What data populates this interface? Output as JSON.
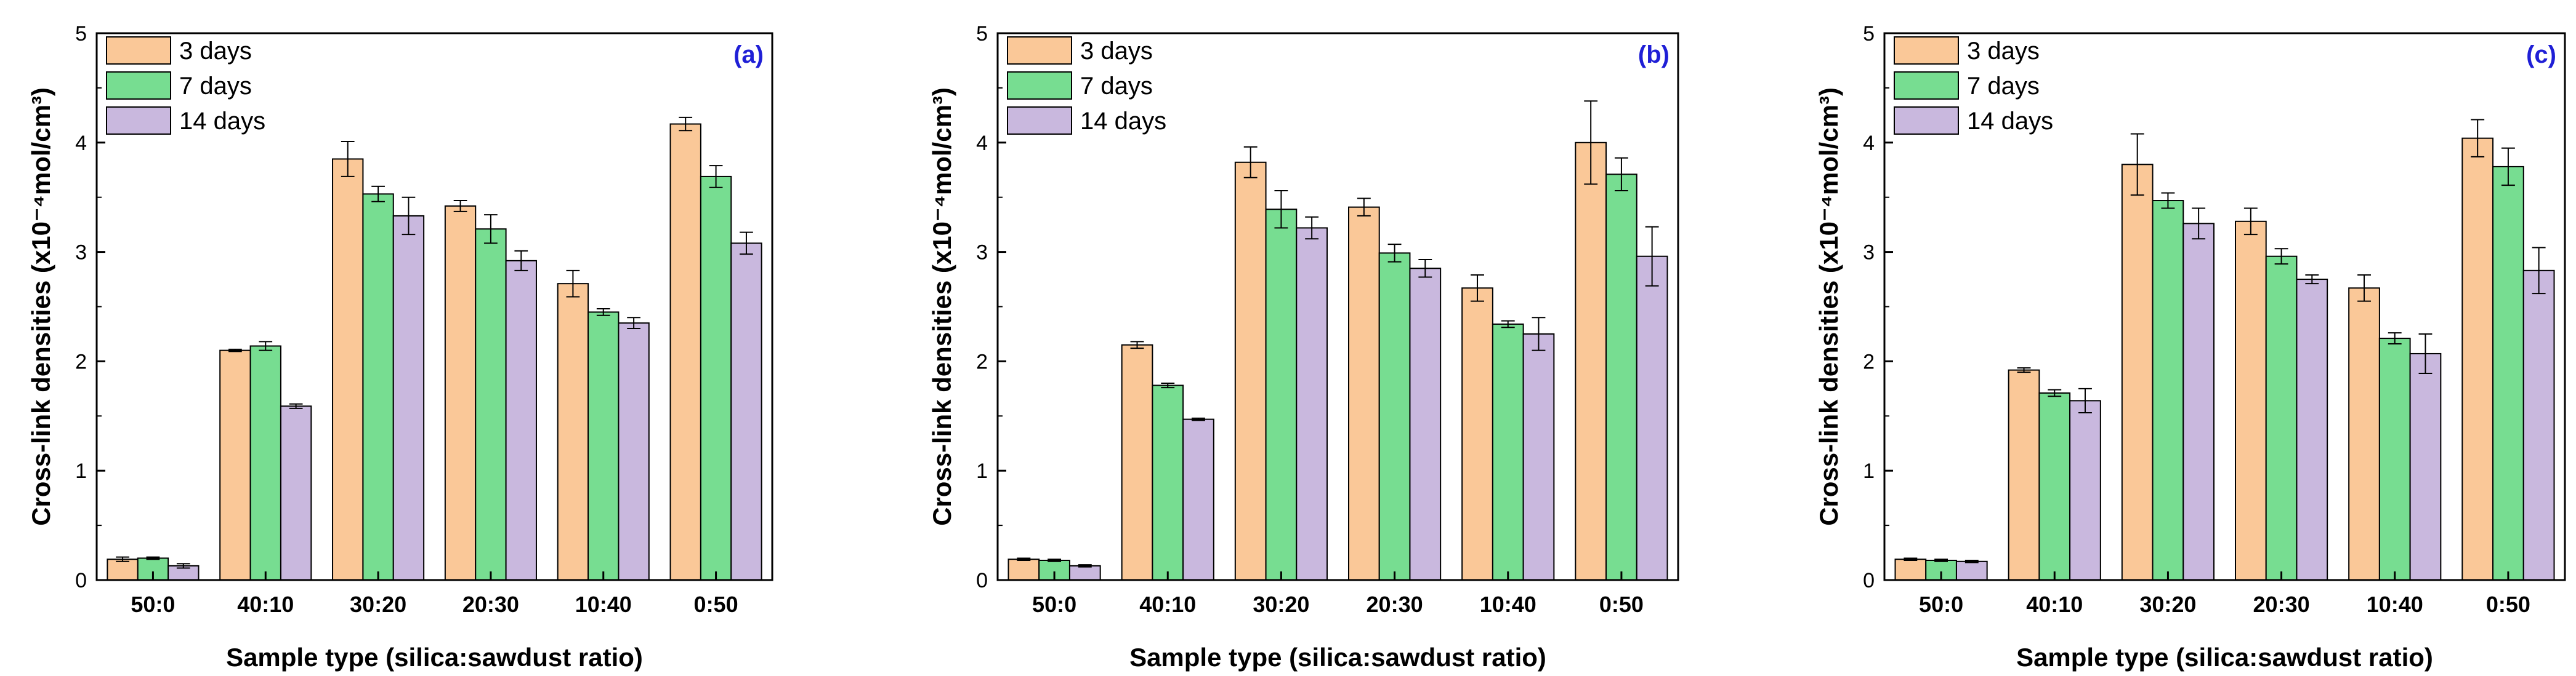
{
  "chart_data": [
    {
      "type": "bar",
      "panel_label": "(a)",
      "categories": [
        "50:0",
        "40:10",
        "30:20",
        "20:30",
        "10:40",
        "0:50"
      ],
      "series": [
        {
          "name": "3 days",
          "color": "#fac898",
          "values": [
            0.19,
            2.1,
            3.85,
            3.42,
            2.71,
            4.17
          ],
          "errors": [
            0.02,
            0.01,
            0.16,
            0.05,
            0.12,
            0.06
          ]
        },
        {
          "name": "7 days",
          "color": "#77dd91",
          "values": [
            0.2,
            2.14,
            3.53,
            3.21,
            2.45,
            3.69
          ],
          "errors": [
            0.01,
            0.04,
            0.07,
            0.13,
            0.03,
            0.1
          ]
        },
        {
          "name": "14 days",
          "color": "#c9b8de",
          "values": [
            0.13,
            1.59,
            3.33,
            2.92,
            2.35,
            3.08
          ],
          "errors": [
            0.02,
            0.02,
            0.17,
            0.09,
            0.05,
            0.1
          ]
        }
      ],
      "ylabel": "Cross-link densities (x10⁻⁴mol/cm³)",
      "xlabel": "Sample type (silica:sawdust ratio)",
      "ylim": [
        0,
        5
      ],
      "yticks": [
        "0",
        "1",
        "2",
        "3",
        "4",
        "5"
      ],
      "legend": "top-left"
    },
    {
      "type": "bar",
      "panel_label": "(b)",
      "categories": [
        "50:0",
        "40:10",
        "30:20",
        "20:30",
        "10:40",
        "0:50"
      ],
      "series": [
        {
          "name": "3 days",
          "color": "#fac898",
          "values": [
            0.19,
            2.15,
            3.82,
            3.41,
            2.67,
            4.0
          ],
          "errors": [
            0.01,
            0.03,
            0.14,
            0.08,
            0.12,
            0.38
          ]
        },
        {
          "name": "7 days",
          "color": "#77dd91",
          "values": [
            0.18,
            1.78,
            3.39,
            2.99,
            2.34,
            3.71
          ],
          "errors": [
            0.01,
            0.02,
            0.17,
            0.08,
            0.03,
            0.15
          ]
        },
        {
          "name": "14 days",
          "color": "#c9b8de",
          "values": [
            0.13,
            1.47,
            3.22,
            2.85,
            2.25,
            2.96
          ],
          "errors": [
            0.01,
            0.01,
            0.1,
            0.08,
            0.15,
            0.27
          ]
        }
      ],
      "ylabel": "Cross-link densities (x10⁻⁴mol/cm³)",
      "xlabel": "Sample type (silica:sawdust ratio)",
      "ylim": [
        0,
        5
      ],
      "yticks": [
        "0",
        "1",
        "2",
        "3",
        "4",
        "5"
      ],
      "legend": "top-left"
    },
    {
      "type": "bar",
      "panel_label": "(c)",
      "categories": [
        "50:0",
        "40:10",
        "30:20",
        "20:30",
        "10:40",
        "0:50"
      ],
      "series": [
        {
          "name": "3 days",
          "color": "#fac898",
          "values": [
            0.19,
            1.92,
            3.8,
            3.28,
            2.67,
            4.04
          ],
          "errors": [
            0.01,
            0.02,
            0.28,
            0.12,
            0.12,
            0.17
          ]
        },
        {
          "name": "7 days",
          "color": "#77dd91",
          "values": [
            0.18,
            1.71,
            3.47,
            2.96,
            2.21,
            3.78
          ],
          "errors": [
            0.01,
            0.03,
            0.07,
            0.07,
            0.05,
            0.17
          ]
        },
        {
          "name": "14 days",
          "color": "#c9b8de",
          "values": [
            0.17,
            1.64,
            3.26,
            2.75,
            2.07,
            2.83
          ],
          "errors": [
            0.01,
            0.11,
            0.14,
            0.04,
            0.18,
            0.21
          ]
        }
      ],
      "ylabel": "Cross-link densities (x10⁻⁴mol/cm³)",
      "xlabel": "Sample type (silica:sawdust ratio)",
      "ylim": [
        0,
        5
      ],
      "yticks": [
        "0",
        "1",
        "2",
        "3",
        "4",
        "5"
      ],
      "legend": "top-left"
    }
  ]
}
